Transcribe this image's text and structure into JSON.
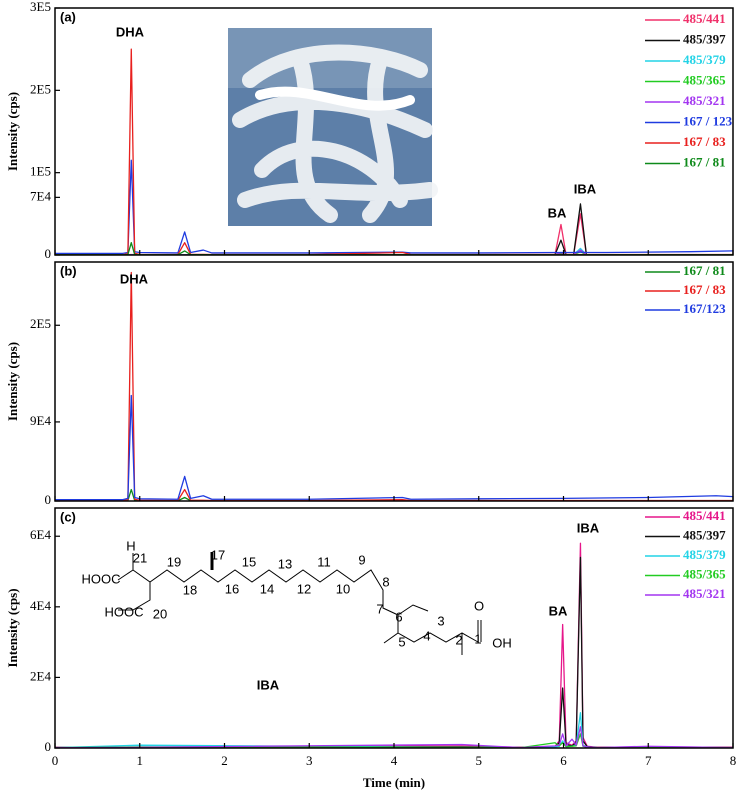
{
  "chart_data": [
    {
      "type": "line",
      "ylabel": "Intensity (cps)",
      "annotations": [
        "(a)",
        "DHA",
        "BA",
        "IBA"
      ],
      "xlim": [
        0,
        8
      ],
      "xticks": [
        0,
        1,
        2,
        3,
        4,
        5,
        6,
        7,
        8
      ],
      "ylim": [
        0,
        300000
      ],
      "yticks": [
        0,
        {
          "value": 70000,
          "label": "7E4"
        },
        {
          "value": 100000,
          "label": "1E5"
        },
        {
          "value": 200000,
          "label": "2E5"
        },
        {
          "value": 300000,
          "label": "3E5"
        }
      ],
      "x": [
        0,
        0.8,
        0.86,
        0.9,
        0.94,
        1.0,
        1.45,
        1.53,
        1.6,
        1.75,
        1.85,
        3,
        4.1,
        4.2,
        5,
        5.9,
        5.97,
        6.03,
        6.12,
        6.2,
        6.27,
        6.5,
        7.5,
        8
      ],
      "series": [
        {
          "name": "485/441",
          "color": "#f0306a",
          "values": [
            500,
            500,
            500,
            600,
            500,
            500,
            500,
            500,
            500,
            500,
            500,
            500,
            500,
            500,
            500,
            600,
            37000,
            600,
            800,
            50000,
            600,
            500,
            500,
            500
          ]
        },
        {
          "name": "485/397",
          "color": "#111111",
          "values": [
            300,
            300,
            300,
            400,
            300,
            300,
            300,
            300,
            300,
            300,
            300,
            300,
            300,
            300,
            300,
            400,
            18000,
            400,
            600,
            62000,
            500,
            300,
            300,
            300
          ]
        },
        {
          "name": "485/379",
          "color": "#22d3e6",
          "values": [
            200,
            200,
            200,
            300,
            200,
            200,
            200,
            200,
            200,
            200,
            200,
            200,
            200,
            200,
            200,
            300,
            3000,
            300,
            400,
            8000,
            300,
            200,
            200,
            200
          ]
        },
        {
          "name": "485/365",
          "color": "#22cc22",
          "values": [
            200,
            200,
            200,
            300,
            200,
            200,
            200,
            200,
            200,
            200,
            200,
            200,
            200,
            200,
            200,
            300,
            2000,
            300,
            300,
            4000,
            300,
            200,
            200,
            200
          ]
        },
        {
          "name": "485/321",
          "color": "#a335f0",
          "values": [
            200,
            200,
            200,
            300,
            200,
            200,
            200,
            200,
            200,
            200,
            200,
            200,
            200,
            200,
            200,
            300,
            3000,
            300,
            500,
            6000,
            300,
            200,
            200,
            200
          ]
        },
        {
          "name": "167 / 123",
          "color": "#1f3be0",
          "values": [
            2000,
            2000,
            3000,
            115000,
            4000,
            3000,
            2500,
            28000,
            3000,
            6000,
            2500,
            2500,
            3500,
            2500,
            2500,
            3000,
            3000,
            3000,
            3000,
            3500,
            3000,
            3000,
            4000,
            5000
          ]
        },
        {
          "name": "167 / 83",
          "color": "#e8201e",
          "values": [
            500,
            500,
            1500,
            250000,
            2000,
            800,
            600,
            15000,
            800,
            800,
            600,
            600,
            3000,
            600,
            600,
            600,
            600,
            600,
            600,
            600,
            600,
            600,
            600,
            600
          ]
        },
        {
          "name": "167 / 81",
          "color": "#0e8a1a",
          "values": [
            300,
            300,
            500,
            15000,
            600,
            400,
            300,
            5000,
            400,
            400,
            300,
            300,
            400,
            300,
            300,
            300,
            300,
            300,
            300,
            300,
            300,
            300,
            300,
            300
          ]
        }
      ]
    },
    {
      "type": "line",
      "ylabel": "Intensity (cps)",
      "annotations": [
        "(b)",
        "DHA"
      ],
      "xlim": [
        0,
        8
      ],
      "xticks": [
        0,
        1,
        2,
        3,
        4,
        5,
        6,
        7,
        8
      ],
      "ylim": [
        0,
        272000
      ],
      "yticks": [
        0,
        {
          "value": 90000,
          "label": "9E4"
        },
        {
          "value": 200000,
          "label": "2E5"
        }
      ],
      "x": [
        0,
        0.8,
        0.86,
        0.9,
        0.94,
        1.0,
        1.45,
        1.53,
        1.6,
        1.75,
        1.85,
        3,
        4.1,
        4.2,
        5,
        6,
        7,
        7.8,
        8
      ],
      "series": [
        {
          "name": "167 / 81",
          "color": "#0e8a1a",
          "values": [
            300,
            300,
            500,
            13000,
            600,
            400,
            300,
            4000,
            400,
            400,
            300,
            300,
            400,
            300,
            300,
            300,
            300,
            300,
            300
          ]
        },
        {
          "name": "167 / 83",
          "color": "#e8201e",
          "values": [
            500,
            500,
            1500,
            260000,
            2000,
            800,
            600,
            13000,
            800,
            800,
            600,
            600,
            1500,
            600,
            600,
            600,
            600,
            600,
            600
          ]
        },
        {
          "name": "167/123",
          "color": "#1f3be0",
          "values": [
            1500,
            1500,
            3000,
            120000,
            4000,
            2500,
            2000,
            28000,
            3000,
            6000,
            2000,
            2000,
            4000,
            2000,
            2500,
            3000,
            4000,
            6000,
            5000
          ]
        }
      ]
    },
    {
      "type": "line",
      "ylabel": "Intensity (cps)",
      "xlabel": "Time (min)",
      "annotations": [
        "(c)",
        "BA",
        "IBA",
        "IBA"
      ],
      "structure_labels": [
        "H",
        "21",
        "19",
        "17",
        "15",
        "13",
        "11",
        "9",
        "8",
        "18",
        "16",
        "14",
        "12",
        "10",
        "7",
        "6",
        "20",
        "5",
        "4",
        "3",
        "2",
        "1",
        "HOOC",
        "HOOC",
        "OH",
        "O"
      ],
      "xlim": [
        0,
        8
      ],
      "xticks": [
        0,
        1,
        2,
        3,
        4,
        5,
        6,
        7,
        8
      ],
      "ylim": [
        0,
        68000
      ],
      "yticks": [
        0,
        {
          "value": 20000,
          "label": "2E4"
        },
        {
          "value": 40000,
          "label": "4E4"
        },
        {
          "value": 60000,
          "label": "6E4"
        }
      ],
      "x": [
        0,
        1,
        4.8,
        5.5,
        5.9,
        5.95,
        5.99,
        6.03,
        6.1,
        6.15,
        6.2,
        6.23,
        6.28,
        6.4,
        7,
        8
      ],
      "series": [
        {
          "name": "485/441",
          "color": "#e6168a",
          "values": [
            200,
            200,
            600,
            200,
            500,
            2000,
            35000,
            1500,
            800,
            2000,
            58000,
            3000,
            500,
            200,
            300,
            200
          ]
        },
        {
          "name": "485/397",
          "color": "#111111",
          "values": [
            150,
            150,
            300,
            150,
            400,
            1500,
            17000,
            1000,
            600,
            1500,
            54000,
            2000,
            400,
            150,
            200,
            150
          ]
        },
        {
          "name": "485/379",
          "color": "#22d3e6",
          "values": [
            100,
            800,
            200,
            100,
            300,
            500,
            2000,
            400,
            500,
            800,
            10000,
            800,
            300,
            100,
            100,
            100
          ]
        },
        {
          "name": "485/365",
          "color": "#22cc22",
          "values": [
            100,
            300,
            200,
            100,
            1500,
            600,
            1500,
            400,
            500,
            600,
            4000,
            500,
            200,
            100,
            100,
            100
          ]
        },
        {
          "name": "485/321",
          "color": "#a335f0",
          "values": [
            100,
            200,
            1000,
            100,
            600,
            800,
            4000,
            600,
            2500,
            800,
            6000,
            600,
            300,
            100,
            500,
            100
          ]
        }
      ]
    }
  ]
}
